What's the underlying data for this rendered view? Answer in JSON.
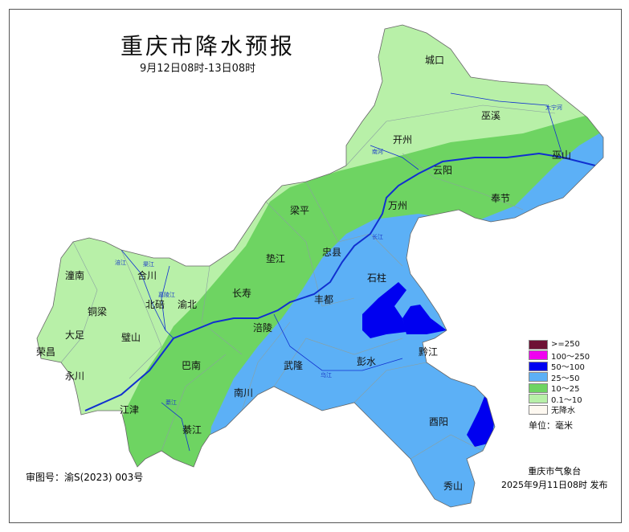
{
  "title": "重庆市降水预报",
  "subtitle": "9月12日08时-13日08时",
  "colors": {
    "none": "#fdf8f0",
    "light": "#b8f0a8",
    "moderate": "#6ed462",
    "heavy": "#5cb0f6",
    "rainstorm": "#0000f0",
    "big": "#f000f0",
    "extreme": "#6e1034",
    "river": "#1030d0",
    "border": "#8aa0a0"
  },
  "legend": {
    "items": [
      {
        "label": ">=250",
        "color": "#6e1034"
      },
      {
        "label": "100～250",
        "color": "#f000f0"
      },
      {
        "label": "50～100",
        "color": "#0000f0"
      },
      {
        "label": "25～50",
        "color": "#5cb0f6"
      },
      {
        "label": "10～25",
        "color": "#6ed462"
      },
      {
        "label": "0.1～10",
        "color": "#b8f0a8"
      },
      {
        "label": "无降水",
        "color": "#fdf8f0"
      }
    ],
    "unit": "单位：毫米"
  },
  "places": [
    "城口",
    "巫溪",
    "开州",
    "云阳",
    "奉节",
    "巫山",
    "万州",
    "梁平",
    "忠县",
    "垫江",
    "石柱",
    "长寿",
    "丰都",
    "涪陵",
    "潼南",
    "合川",
    "铜梁",
    "北碚",
    "渝北",
    "大足",
    "璧山",
    "荣昌",
    "永川",
    "巴南",
    "江津",
    "綦江",
    "南川",
    "武隆",
    "彭水",
    "黔江",
    "酉阳",
    "秀山"
  ],
  "rivers": [
    "长江",
    "嘉陵江",
    "乌江",
    "涪江",
    "渠江",
    "大宁河",
    "南河",
    "綦江"
  ],
  "review_no": "审图号：渝S(2023) 003号",
  "issuer": "重庆市气象台",
  "issue_time": "2025年9月11日08时  发布"
}
